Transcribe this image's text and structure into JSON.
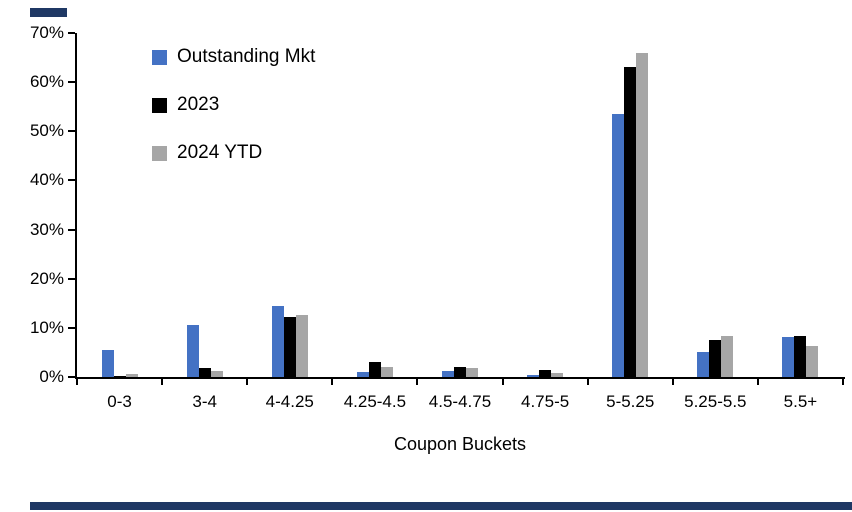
{
  "page": {
    "accent_color": "#1F3864",
    "background": "#FFFFFF"
  },
  "chart_data": {
    "type": "bar",
    "title": "",
    "xlabel": "Coupon Buckets",
    "ylabel": "",
    "ylim": [
      0,
      70
    ],
    "ytick_step": 10,
    "ytick_suffix": "%",
    "grid": false,
    "legend_position": "top-left-inside",
    "categories": [
      "0-3",
      "3-4",
      "4-4.25",
      "4.25-4.5",
      "4.5-4.75",
      "4.75-5",
      "5-5.25",
      "5.25-5.5",
      "5.5+"
    ],
    "series": [
      {
        "name": "Outstanding Mkt",
        "color": "#4472C4",
        "values": [
          5.5,
          10.5,
          14.5,
          1.0,
          1.3,
          0.5,
          53.5,
          5.0,
          8.2
        ]
      },
      {
        "name": "2023",
        "color": "#000000",
        "values": [
          0.2,
          1.8,
          12.3,
          3.0,
          2.0,
          1.4,
          63.0,
          7.5,
          8.3
        ]
      },
      {
        "name": "2024 YTD",
        "color": "#A6A6A6",
        "values": [
          0.6,
          1.2,
          12.6,
          2.0,
          1.8,
          0.8,
          66.0,
          8.3,
          6.3
        ]
      }
    ]
  }
}
